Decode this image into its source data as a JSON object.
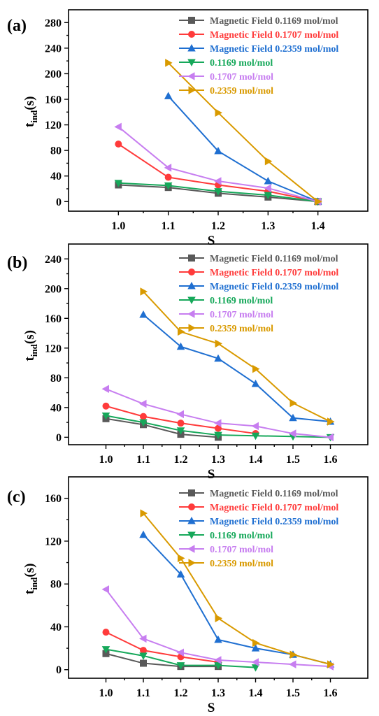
{
  "series_styles": [
    {
      "color": "#595959",
      "marker": "square"
    },
    {
      "color": "#ff3b3b",
      "marker": "circle"
    },
    {
      "color": "#1f6fd1",
      "marker": "triangle-up"
    },
    {
      "color": "#16a85a",
      "marker": "triangle-down"
    },
    {
      "color": "#c77ef0",
      "marker": "triangle-left"
    },
    {
      "color": "#d99a00",
      "marker": "triangle-right"
    }
  ],
  "chart_data": [
    {
      "type": "line",
      "panel_label": "(a)",
      "xlabel": "S",
      "ylabel_main": "t",
      "ylabel_sub": "ind",
      "ylabel_suffix": "(s)",
      "xlim": [
        0.9,
        1.5
      ],
      "ylim": [
        -15,
        300
      ],
      "xticks": [
        "1.0",
        "1.1",
        "1.2",
        "1.3",
        "1.4"
      ],
      "yticks": [
        "0",
        "40",
        "80",
        "120",
        "160",
        "200",
        "240",
        "280"
      ],
      "series": [
        {
          "name": "Magnetic Field 0.1169 mol/mol",
          "x": [
            1.0,
            1.1,
            1.2,
            1.3,
            1.4
          ],
          "values": [
            26,
            22,
            13,
            7,
            0
          ]
        },
        {
          "name": "Magnetic Field 0.1707 mol/mol",
          "x": [
            1.0,
            1.1,
            1.2,
            1.3,
            1.4
          ],
          "values": [
            90,
            38,
            26,
            16,
            0
          ]
        },
        {
          "name": "Magnetic Field 0.2359 mol/mol",
          "x": [
            1.1,
            1.2,
            1.3,
            1.4
          ],
          "values": [
            165,
            79,
            32,
            0
          ]
        },
        {
          "name": "0.1169 mol/mol",
          "x": [
            1.0,
            1.1,
            1.2,
            1.3,
            1.4
          ],
          "values": [
            29,
            25,
            16,
            10,
            0
          ]
        },
        {
          "name": "0.1707 mol/mol",
          "x": [
            1.0,
            1.1,
            1.2,
            1.3,
            1.4
          ],
          "values": [
            117,
            53,
            32,
            21,
            0
          ]
        },
        {
          "name": "0.2359 mol/mol",
          "x": [
            1.1,
            1.2,
            1.3,
            1.4
          ],
          "values": [
            217,
            139,
            63,
            0
          ]
        }
      ]
    },
    {
      "type": "line",
      "panel_label": "(b)",
      "xlabel": "S",
      "ylabel_main": "t",
      "ylabel_sub": "ind",
      "ylabel_suffix": "(s)",
      "xlim": [
        0.9,
        1.7
      ],
      "ylim": [
        -10,
        260
      ],
      "xticks": [
        "1.0",
        "1.1",
        "1.2",
        "1.3",
        "1.4",
        "1.5",
        "1.6"
      ],
      "yticks": [
        "0",
        "40",
        "80",
        "120",
        "160",
        "200",
        "240"
      ],
      "series": [
        {
          "name": "Magnetic Field 0.1169 mol/mol",
          "x": [
            1.0,
            1.1,
            1.2,
            1.3
          ],
          "values": [
            25,
            17,
            4,
            0
          ]
        },
        {
          "name": "Magnetic Field 0.1707 mol/mol",
          "x": [
            1.0,
            1.1,
            1.2,
            1.3,
            1.4
          ],
          "values": [
            42,
            28,
            19,
            12,
            5
          ]
        },
        {
          "name": "Magnetic Field 0.2359 mol/mol",
          "x": [
            1.1,
            1.2,
            1.3,
            1.4,
            1.5,
            1.6
          ],
          "values": [
            165,
            122,
            106,
            72,
            26,
            21
          ]
        },
        {
          "name": "0.1169 mol/mol",
          "x": [
            1.0,
            1.1,
            1.2,
            1.3,
            1.4,
            1.5,
            1.6
          ],
          "values": [
            29,
            20,
            9,
            3,
            2,
            1,
            0
          ]
        },
        {
          "name": "0.1707 mol/mol",
          "x": [
            1.0,
            1.1,
            1.2,
            1.3,
            1.4,
            1.5,
            1.6
          ],
          "values": [
            65,
            45,
            31,
            19,
            15,
            5,
            0
          ]
        },
        {
          "name": "0.2359 mol/mol",
          "x": [
            1.1,
            1.2,
            1.3,
            1.4,
            1.5,
            1.6
          ],
          "values": [
            196,
            142,
            126,
            92,
            46,
            21
          ]
        }
      ]
    },
    {
      "type": "line",
      "panel_label": "(c)",
      "xlabel": "S",
      "ylabel_main": "t",
      "ylabel_sub": "ind",
      "ylabel_suffix": "(s)",
      "xlim": [
        0.9,
        1.7
      ],
      "ylim": [
        -8,
        180
      ],
      "xticks": [
        "1.0",
        "1.1",
        "1.2",
        "1.3",
        "1.4",
        "1.5",
        "1.6"
      ],
      "yticks": [
        "0",
        "40",
        "80",
        "120",
        "160"
      ],
      "series": [
        {
          "name": "Magnetic Field 0.1169 mol/mol",
          "x": [
            1.0,
            1.1,
            1.2,
            1.3
          ],
          "values": [
            15,
            6,
            3,
            3
          ]
        },
        {
          "name": "Magnetic Field 0.1707 mol/mol",
          "x": [
            1.0,
            1.1,
            1.2,
            1.3
          ],
          "values": [
            35,
            18,
            12,
            7
          ]
        },
        {
          "name": "Magnetic Field 0.2359 mol/mol",
          "x": [
            1.1,
            1.2,
            1.3,
            1.4,
            1.5,
            1.6
          ],
          "values": [
            126,
            89,
            28,
            20,
            14,
            5
          ]
        },
        {
          "name": "0.1169 mol/mol",
          "x": [
            1.0,
            1.1,
            1.2,
            1.3,
            1.4
          ],
          "values": [
            19,
            13,
            4,
            4,
            2
          ]
        },
        {
          "name": "0.1707 mol/mol",
          "x": [
            1.0,
            1.1,
            1.2,
            1.3,
            1.4,
            1.5,
            1.6
          ],
          "values": [
            75,
            29,
            16,
            9,
            7,
            5,
            3
          ]
        },
        {
          "name": "0.2359 mol/mol",
          "x": [
            1.1,
            1.2,
            1.3,
            1.4,
            1.5,
            1.6
          ],
          "values": [
            146,
            104,
            48,
            25,
            14,
            5
          ]
        }
      ]
    }
  ]
}
